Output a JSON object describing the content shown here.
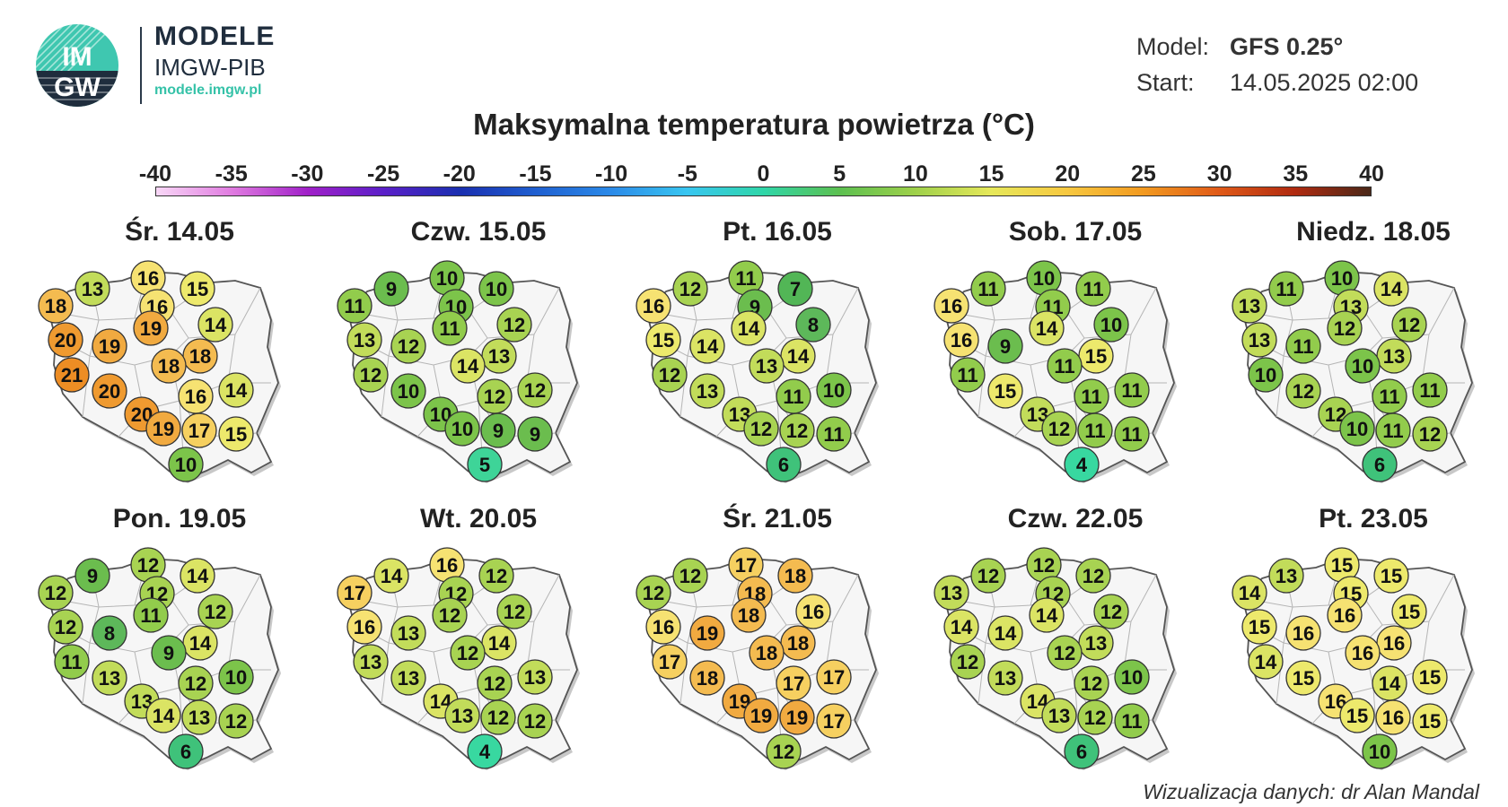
{
  "brand": {
    "logo_text_top": "IM",
    "logo_text_bottom": "GW",
    "title": "MODELE",
    "subtitle": "IMGW-PIB",
    "url": "modele.imgw.pl"
  },
  "meta": {
    "model_label": "Model:",
    "model_value": "GFS 0.25°",
    "start_label": "Start:",
    "start_value": "14.05.2025 02:00"
  },
  "title": "Maksymalna temperatura powietrza (°C)",
  "scale": {
    "ticks": [
      "-40",
      "-35",
      "-30",
      "-25",
      "-20",
      "-15",
      "-10",
      "-5",
      "0",
      "5",
      "10",
      "15",
      "20",
      "25",
      "30",
      "35",
      "40"
    ],
    "colors": [
      "#f8d7f6",
      "#e07be0",
      "#a020c8",
      "#5a1fc8",
      "#1a2fb0",
      "#1f5fd0",
      "#2b8ae8",
      "#38c6f0",
      "#2fd6a8",
      "#5cc050",
      "#9ed04a",
      "#e6e85a",
      "#f7c840",
      "#f29a20",
      "#e05a18",
      "#b02a10",
      "#4a2818"
    ]
  },
  "colors": {
    "t4": "#38d8a0",
    "t5": "#3ed498",
    "t6": "#3fc27a",
    "t7": "#52b656",
    "t8": "#5db85a",
    "t9": "#6bbd4e",
    "t10": "#7cc44a",
    "t11": "#92cc4c",
    "t12": "#a8d352",
    "t13": "#c2dc5a",
    "t14": "#dbe464",
    "t15": "#ede96c",
    "t16": "#f6e272",
    "t17": "#f6d060",
    "t18": "#f4bb50",
    "t19": "#f1aa40",
    "t20": "#ef9a30",
    "t21": "#ed8d24"
  },
  "panels": [
    {
      "date": "Śr. 14.05",
      "values": [
        13,
        16,
        15,
        18,
        16,
        14,
        20,
        19,
        19,
        18,
        21,
        18,
        20,
        16,
        14,
        20,
        19,
        17,
        15,
        10
      ]
    },
    {
      "date": "Czw. 15.05",
      "values": [
        9,
        10,
        10,
        11,
        10,
        12,
        13,
        12,
        11,
        13,
        12,
        14,
        10,
        12,
        12,
        10,
        10,
        9,
        9,
        5
      ]
    },
    {
      "date": "Pt. 16.05",
      "values": [
        12,
        11,
        7,
        16,
        9,
        8,
        15,
        14,
        14,
        14,
        12,
        13,
        13,
        11,
        10,
        13,
        12,
        12,
        11,
        6
      ]
    },
    {
      "date": "Sob. 17.05",
      "values": [
        11,
        10,
        11,
        16,
        11,
        10,
        16,
        9,
        14,
        15,
        11,
        11,
        15,
        11,
        11,
        13,
        12,
        11,
        11,
        4
      ]
    },
    {
      "date": "Niedz. 18.05",
      "values": [
        11,
        10,
        14,
        13,
        13,
        12,
        13,
        11,
        12,
        13,
        10,
        10,
        12,
        11,
        11,
        12,
        10,
        11,
        12,
        6
      ]
    },
    {
      "date": "Pon. 19.05",
      "values": [
        9,
        12,
        14,
        12,
        12,
        12,
        12,
        8,
        11,
        14,
        11,
        9,
        13,
        12,
        10,
        13,
        14,
        13,
        12,
        6
      ]
    },
    {
      "date": "Wt. 20.05",
      "values": [
        14,
        16,
        12,
        17,
        12,
        12,
        16,
        13,
        12,
        14,
        13,
        12,
        13,
        12,
        13,
        14,
        13,
        12,
        12,
        4
      ]
    },
    {
      "date": "Śr. 21.05",
      "values": [
        12,
        17,
        18,
        12,
        18,
        16,
        16,
        19,
        18,
        18,
        17,
        18,
        18,
        17,
        17,
        19,
        19,
        19,
        17,
        12
      ]
    },
    {
      "date": "Czw. 22.05",
      "values": [
        12,
        12,
        12,
        13,
        12,
        12,
        14,
        14,
        14,
        13,
        12,
        12,
        13,
        12,
        10,
        14,
        13,
        12,
        11,
        6
      ]
    },
    {
      "date": "Pt. 23.05",
      "values": [
        13,
        15,
        15,
        14,
        15,
        15,
        15,
        16,
        16,
        16,
        14,
        16,
        15,
        14,
        15,
        16,
        15,
        16,
        15,
        10
      ]
    }
  ],
  "credit": "Wizualizacja danych: dr Alan Mandal"
}
